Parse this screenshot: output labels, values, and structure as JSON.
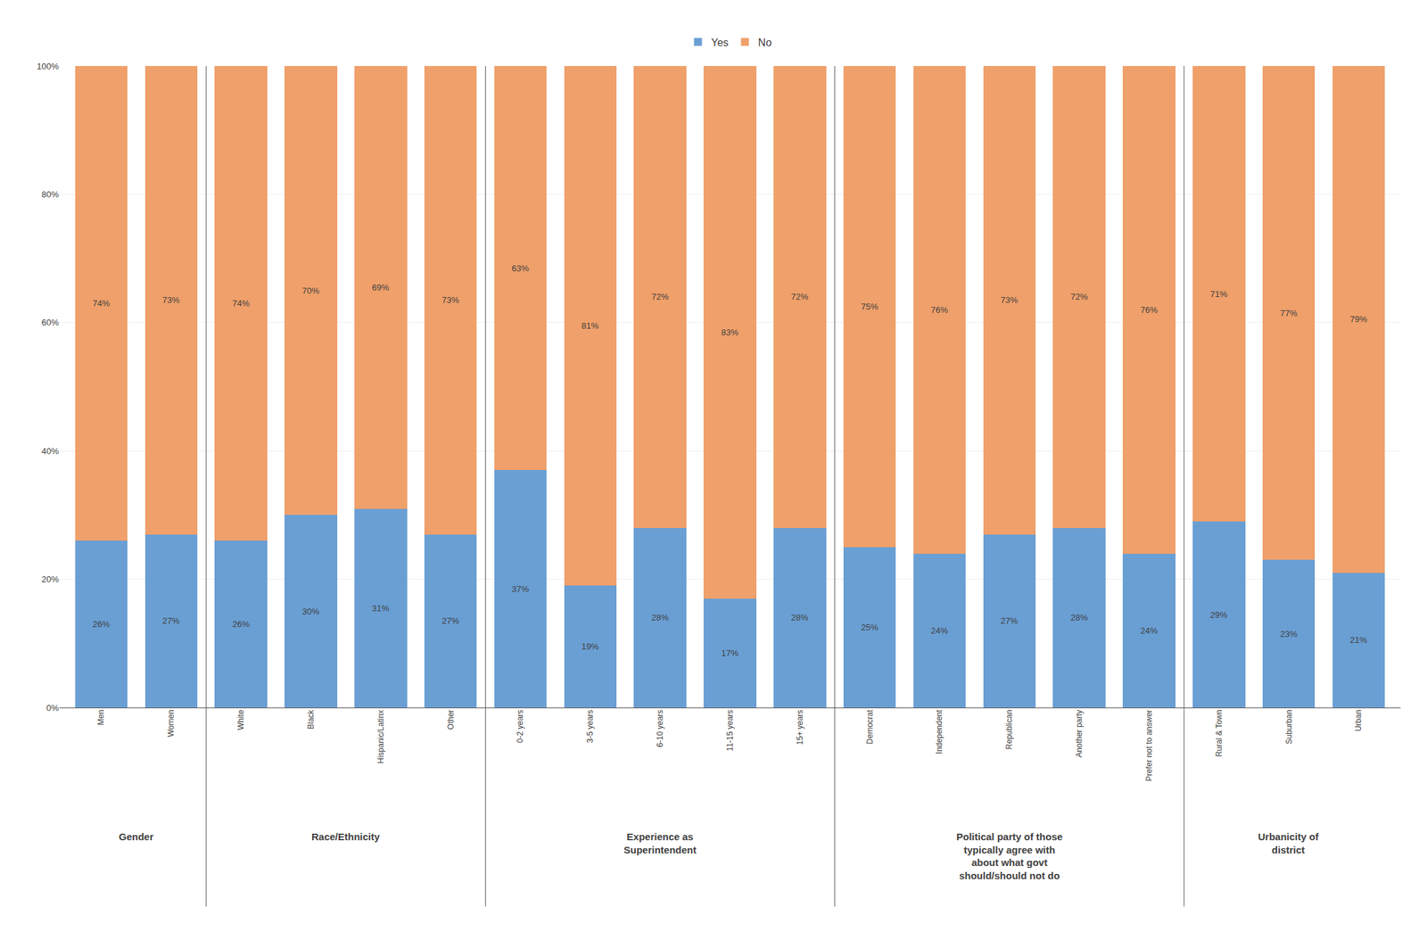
{
  "chart_data": {
    "type": "bar",
    "stacked": true,
    "categories": [
      "Men",
      "Women",
      "White",
      "Black",
      "Hispanic/Latinx",
      "Other",
      "0-2 years",
      "3-5 years",
      "6-10 years",
      "11-15 years",
      "15+ years",
      "Democrat",
      "Independent",
      "Republican",
      "Another party",
      "Prefer not to answer",
      "Rural & Town",
      "Suburban",
      "Urban"
    ],
    "series": [
      {
        "name": "Yes",
        "color": "#6A9FD4",
        "values": [
          26,
          27,
          26,
          30,
          31,
          27,
          37,
          19,
          28,
          17,
          28,
          25,
          24,
          27,
          28,
          24,
          29,
          23,
          21
        ],
        "value_labels": [
          "26%",
          "27%",
          "26%",
          "30%",
          "31%",
          "27%",
          "37%",
          "19%",
          "28%",
          "17%",
          "28%",
          "25%",
          "24%",
          "27%",
          "28%",
          "24%",
          "29%",
          "23%",
          "21%"
        ]
      },
      {
        "name": "No",
        "color": "#F0A06A",
        "values": [
          74,
          73,
          74,
          70,
          69,
          73,
          63,
          81,
          72,
          83,
          72,
          75,
          76,
          73,
          72,
          76,
          71,
          77,
          79
        ],
        "value_labels": [
          "74%",
          "73%",
          "74%",
          "70%",
          "69%",
          "73%",
          "63%",
          "81%",
          "72%",
          "83%",
          "72%",
          "75%",
          "76%",
          "73%",
          "72%",
          "76%",
          "71%",
          "77%",
          "79%"
        ]
      }
    ],
    "ylim": [
      0,
      100
    ],
    "yticks": [
      {
        "value": 0,
        "label": "0%"
      },
      {
        "value": 20,
        "label": "20%"
      },
      {
        "value": 40,
        "label": "40%"
      },
      {
        "value": 60,
        "label": "60%"
      },
      {
        "value": 80,
        "label": "80%"
      },
      {
        "value": 100,
        "label": "100%"
      }
    ],
    "grid": true,
    "legend": "top",
    "data_labels": true,
    "groups": [
      {
        "label": "Gender",
        "categories": [
          "Men",
          "Women"
        ]
      },
      {
        "label": "Race/Ethnicity",
        "categories": [
          "White",
          "Black",
          "Hispanic/Latinx",
          "Other"
        ]
      },
      {
        "label": "Experience as\nSuperintendent",
        "categories": [
          "0-2 years",
          "3-5 years",
          "6-10 years",
          "11-15 years",
          "15+ years"
        ]
      },
      {
        "label": "Political party of those\ntypically agree with\nabout what govt\nshould/should not do",
        "categories": [
          "Democrat",
          "Independent",
          "Republican",
          "Another party",
          "Prefer not to answer"
        ]
      },
      {
        "label": "Urbanicity of\ndistrict",
        "categories": [
          "Rural & Town",
          "Suburban",
          "Urban"
        ]
      }
    ]
  }
}
